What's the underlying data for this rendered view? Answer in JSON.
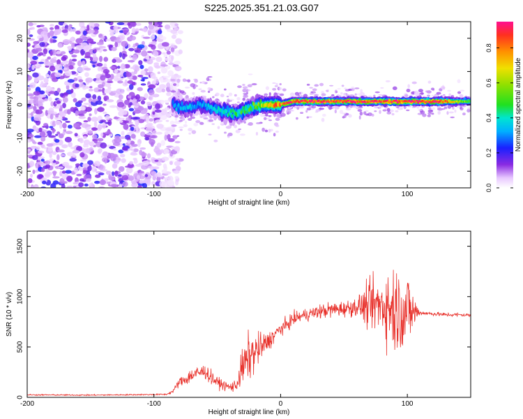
{
  "title": "S225.2025.351.21.03.G07",
  "chart_data": [
    {
      "type": "heatmap",
      "xlabel": "Height of straight line (km)",
      "ylabel": "Frequency (Hz)",
      "xlim": [
        -200,
        150
      ],
      "ylim": [
        -25,
        25
      ],
      "xticks": [
        -200,
        -100,
        0,
        100
      ],
      "yticks": [
        -20,
        -10,
        0,
        10,
        20
      ],
      "colorbar": {
        "label": "Normalized spectral amplitude",
        "range": [
          0,
          0.95
        ],
        "ticks": [
          0.0,
          0.2,
          0.4,
          0.6,
          0.8
        ]
      },
      "ridge": {
        "description_points_x": [
          -85,
          -75,
          -65,
          -55,
          -45,
          -35,
          -25,
          -15,
          -5,
          0,
          10,
          20,
          30,
          40,
          50,
          60,
          70,
          80,
          90,
          100,
          110,
          120,
          130,
          140,
          150
        ],
        "frequency_hz": [
          0,
          -1,
          0,
          -1,
          -2,
          -3,
          -1,
          0,
          0,
          0,
          1,
          1,
          1,
          1,
          1,
          1,
          1,
          1,
          1,
          1,
          1,
          1,
          1,
          1,
          1
        ],
        "peak_amplitude": [
          0.3,
          0.35,
          0.3,
          0.35,
          0.4,
          0.45,
          0.5,
          0.6,
          0.75,
          0.8,
          0.85,
          0.9,
          0.9,
          0.85,
          0.85,
          0.9,
          0.9,
          0.85,
          0.9,
          0.9,
          0.85,
          0.9,
          0.85,
          0.6,
          0.5
        ]
      },
      "noise_region_x": [
        -200,
        -85
      ]
    },
    {
      "type": "line",
      "xlabel": "Height of straight line (km)",
      "ylabel": "SNR (10 * v/v)",
      "xlim": [
        -200,
        150
      ],
      "ylim": [
        0,
        1650
      ],
      "xticks": [
        -200,
        -100,
        0,
        100
      ],
      "yticks": [
        0,
        500,
        1000,
        1500
      ],
      "series": [
        {
          "name": "SNR",
          "color": "#e8302a",
          "x": [
            -200,
            -150,
            -100,
            -90,
            -85,
            -80,
            -75,
            -70,
            -65,
            -60,
            -55,
            -50,
            -45,
            -40,
            -35,
            -30,
            -25,
            -20,
            -15,
            -10,
            -5,
            0,
            5,
            10,
            20,
            30,
            40,
            50,
            60,
            70,
            80,
            85,
            90,
            95,
            100,
            105,
            110,
            120,
            130,
            140,
            150
          ],
          "values": [
            25,
            22,
            28,
            30,
            60,
            150,
            180,
            220,
            240,
            260,
            200,
            150,
            120,
            100,
            120,
            300,
            400,
            450,
            500,
            550,
            620,
            680,
            720,
            780,
            820,
            850,
            870,
            880,
            900,
            910,
            920,
            900,
            880,
            870,
            860,
            850,
            840,
            830,
            820,
            820,
            815
          ],
          "variability": [
            8,
            8,
            8,
            10,
            20,
            60,
            80,
            100,
            100,
            90,
            90,
            70,
            60,
            60,
            80,
            250,
            300,
            250,
            180,
            120,
            100,
            90,
            90,
            80,
            80,
            90,
            100,
            100,
            120,
            300,
            400,
            500,
            600,
            500,
            500,
            250,
            30,
            25,
            25,
            25,
            25
          ]
        }
      ]
    }
  ]
}
